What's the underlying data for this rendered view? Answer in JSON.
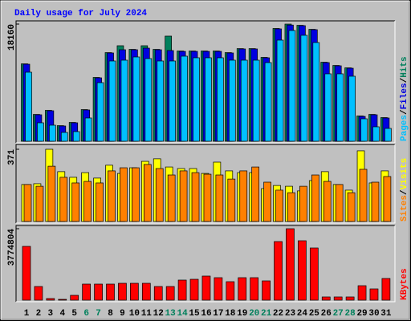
{
  "title": "Daily usage for July 2024",
  "legend_separator": "/",
  "chart_data": [
    {
      "type": "bar",
      "series": [
        {
          "name": "Hits",
          "color": "#00805c",
          "values": [
            12000,
            4160,
            4790,
            2420,
            2920,
            4910,
            9890,
            13740,
            14804,
            14240,
            14804,
            14240,
            16296,
            13990,
            13990,
            13990,
            13990,
            13740,
            14360,
            14360,
            13000,
            17480,
            18160,
            17970,
            17350,
            12250,
            11750,
            11380,
            3920,
            4160,
            3670
          ]
        },
        {
          "name": "Files",
          "color": "#0000e0",
          "values": [
            11942,
            4105,
            4727,
            2364,
            2861,
            4852,
            9828,
            13684,
            14182,
            14182,
            14430,
            14182,
            14057,
            13933,
            13933,
            13933,
            13933,
            13684,
            14306,
            14306,
            12938,
            17416,
            18010,
            17914,
            17292,
            12191,
            11694,
            11320,
            3856,
            4105,
            3608
          ]
        },
        {
          "name": "Pages",
          "color": "#00c0ff",
          "values": [
            10698,
            2861,
            2488,
            1368,
            1493,
            3608,
            9081,
            12440,
            12564,
            13062,
            12813,
            12440,
            12440,
            13186,
            12938,
            12938,
            12938,
            12564,
            12564,
            12564,
            12191,
            15674,
            17167,
            16421,
            15301,
            10450,
            10450,
            10076,
            3483,
            2239,
            1990
          ]
        }
      ],
      "ylim": [
        0,
        18160
      ],
      "yticks": [
        18160
      ]
    },
    {
      "type": "bar",
      "series": [
        {
          "name": "Visits",
          "color": "#ffff00",
          "values": [
            190,
            194,
            371,
            256,
            227,
            251,
            223,
            289,
            247,
            276,
            309,
            322,
            280,
            272,
            272,
            247,
            305,
            260,
            251,
            251,
            169,
            185,
            181,
            157,
            210,
            256,
            190,
            161,
            363,
            198,
            260
          ]
        },
        {
          "name": "Sites",
          "color": "#ff8000",
          "values": [
            190,
            181,
            284,
            227,
            198,
            206,
            198,
            260,
            276,
            276,
            293,
            272,
            239,
            260,
            251,
            243,
            239,
            218,
            260,
            280,
            202,
            161,
            148,
            181,
            239,
            206,
            190,
            148,
            268,
            202,
            231
          ]
        }
      ],
      "ylim": [
        0,
        371
      ],
      "yticks": [
        371
      ]
    },
    {
      "type": "bar",
      "categories": [
        "1",
        "2",
        "3",
        "4",
        "5",
        "6",
        "7",
        "8",
        "9",
        "10",
        "11",
        "12",
        "13",
        "14",
        "15",
        "16",
        "17",
        "18",
        "19",
        "20",
        "21",
        "22",
        "23",
        "24",
        "25",
        "26",
        "27",
        "28",
        "29",
        "30",
        "31"
      ],
      "category_colors": [
        "#000000",
        "#000000",
        "#000000",
        "#000000",
        "#000000",
        "#00805c",
        "#00805c",
        "#000000",
        "#000000",
        "#000000",
        "#000000",
        "#000000",
        "#00805c",
        "#00805c",
        "#000000",
        "#000000",
        "#000000",
        "#000000",
        "#000000",
        "#00805c",
        "#00805c",
        "#000000",
        "#000000",
        "#000000",
        "#000000",
        "#000000",
        "#00805c",
        "#00805c",
        "#000000",
        "#000000",
        "#000000"
      ],
      "series": [
        {
          "name": "KBytes",
          "color": "#ff0000",
          "values": [
            2841700,
            721000,
            84800,
            42400,
            254500,
            848300,
            848300,
            848300,
            890700,
            890700,
            890700,
            721000,
            721000,
            1060300,
            1102700,
            1272400,
            1187600,
            975500,
            1187600,
            1187600,
            1017900,
            3096100,
            3774804,
            3138600,
            2756800,
            169700,
            169700,
            169700,
            763400,
            593800,
            1145200
          ]
        }
      ],
      "ylim": [
        0,
        3774804
      ],
      "yticks": [
        3774804
      ]
    }
  ]
}
